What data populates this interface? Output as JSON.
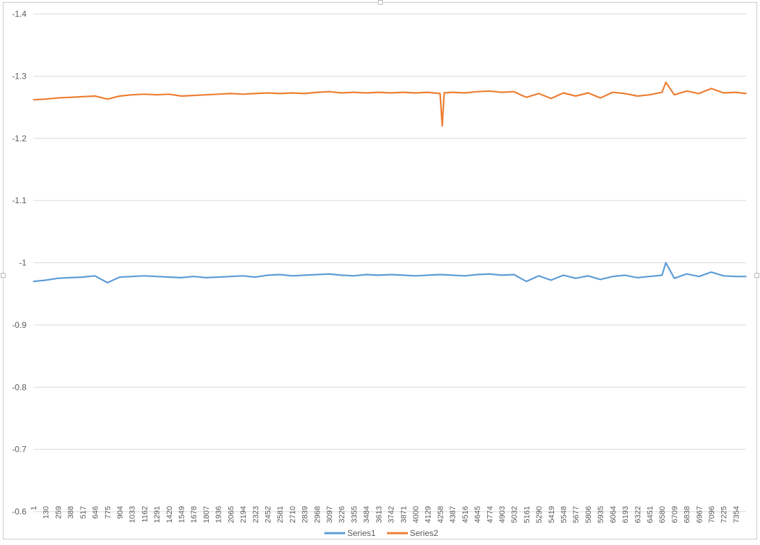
{
  "chart_data": {
    "type": "line",
    "title": "",
    "xlabel": "",
    "ylabel": "",
    "ylim": [
      -0.6,
      -1.4
    ],
    "y_axis_reversed": true,
    "y_ticks": [
      "-1.4",
      "-1.3",
      "-1.2",
      "-1.1",
      "-1",
      "-0.9",
      "-0.8",
      "-0.7",
      "-0.6"
    ],
    "x_tick_labels": [
      "1",
      "130",
      "259",
      "388",
      "517",
      "646",
      "775",
      "904",
      "1033",
      "1162",
      "1291",
      "1420",
      "1549",
      "1678",
      "1807",
      "1936",
      "2065",
      "2194",
      "2323",
      "2452",
      "2581",
      "2710",
      "2839",
      "2968",
      "3097",
      "3226",
      "3355",
      "3484",
      "3613",
      "3742",
      "3871",
      "4000",
      "4129",
      "4258",
      "4387",
      "4516",
      "4645",
      "4774",
      "4903",
      "5032",
      "5161",
      "5290",
      "5419",
      "5548",
      "5677",
      "5806",
      "5935",
      "6064",
      "6193",
      "6322",
      "6451",
      "6580",
      "6709",
      "6838",
      "6967",
      "7096",
      "7225",
      "7354"
    ],
    "x_range": [
      1,
      7460
    ],
    "gridlines": true,
    "legend_position": "bottom",
    "series": [
      {
        "name": "Series1",
        "color": "#5b9bd5",
        "x": [
          1,
          130,
          259,
          388,
          517,
          646,
          775,
          904,
          1033,
          1162,
          1291,
          1420,
          1549,
          1678,
          1807,
          1936,
          2065,
          2194,
          2323,
          2452,
          2581,
          2710,
          2839,
          2968,
          3097,
          3226,
          3355,
          3484,
          3613,
          3742,
          3871,
          4000,
          4129,
          4258,
          4387,
          4516,
          4645,
          4774,
          4903,
          5032,
          5100,
          5161,
          5290,
          5419,
          5548,
          5677,
          5806,
          5935,
          6064,
          6193,
          6322,
          6451,
          6580,
          6620,
          6709,
          6838,
          6967,
          7096,
          7225,
          7354,
          7460
        ],
        "values": [
          -0.97,
          -0.972,
          -0.975,
          -0.976,
          -0.977,
          -0.979,
          -0.968,
          -0.977,
          -0.978,
          -0.979,
          -0.978,
          -0.977,
          -0.976,
          -0.978,
          -0.976,
          -0.977,
          -0.978,
          -0.979,
          -0.977,
          -0.98,
          -0.981,
          -0.979,
          -0.98,
          -0.981,
          -0.982,
          -0.98,
          -0.979,
          -0.981,
          -0.98,
          -0.981,
          -0.98,
          -0.979,
          -0.98,
          -0.981,
          -0.98,
          -0.979,
          -0.981,
          -0.982,
          -0.98,
          -0.981,
          -0.975,
          -0.97,
          -0.979,
          -0.972,
          -0.98,
          -0.975,
          -0.979,
          -0.973,
          -0.978,
          -0.98,
          -0.976,
          -0.978,
          -0.98,
          -1.0,
          -0.975,
          -0.982,
          -0.978,
          -0.985,
          -0.979,
          -0.978,
          -0.978
        ]
      },
      {
        "name": "Series2",
        "color": "#ed7d31",
        "x": [
          1,
          130,
          259,
          388,
          517,
          646,
          775,
          904,
          1033,
          1162,
          1291,
          1420,
          1549,
          1678,
          1807,
          1936,
          2065,
          2194,
          2323,
          2452,
          2581,
          2710,
          2839,
          2968,
          3097,
          3226,
          3355,
          3484,
          3613,
          3742,
          3871,
          4000,
          4129,
          4258,
          4280,
          4300,
          4387,
          4516,
          4645,
          4774,
          4903,
          5032,
          5100,
          5161,
          5290,
          5419,
          5548,
          5677,
          5806,
          5935,
          6064,
          6193,
          6322,
          6451,
          6580,
          6620,
          6709,
          6838,
          6967,
          7096,
          7225,
          7354,
          7460
        ],
        "values": [
          -1.262,
          -1.263,
          -1.265,
          -1.266,
          -1.267,
          -1.268,
          -1.263,
          -1.268,
          -1.27,
          -1.271,
          -1.27,
          -1.271,
          -1.268,
          -1.269,
          -1.27,
          -1.271,
          -1.272,
          -1.271,
          -1.272,
          -1.273,
          -1.272,
          -1.273,
          -1.272,
          -1.274,
          -1.275,
          -1.273,
          -1.274,
          -1.273,
          -1.274,
          -1.273,
          -1.274,
          -1.273,
          -1.274,
          -1.272,
          -1.22,
          -1.273,
          -1.274,
          -1.273,
          -1.275,
          -1.276,
          -1.274,
          -1.275,
          -1.27,
          -1.266,
          -1.272,
          -1.264,
          -1.273,
          -1.268,
          -1.273,
          -1.265,
          -1.274,
          -1.272,
          -1.268,
          -1.27,
          -1.274,
          -1.29,
          -1.27,
          -1.276,
          -1.272,
          -1.28,
          -1.273,
          -1.274,
          -1.272
        ]
      }
    ]
  }
}
